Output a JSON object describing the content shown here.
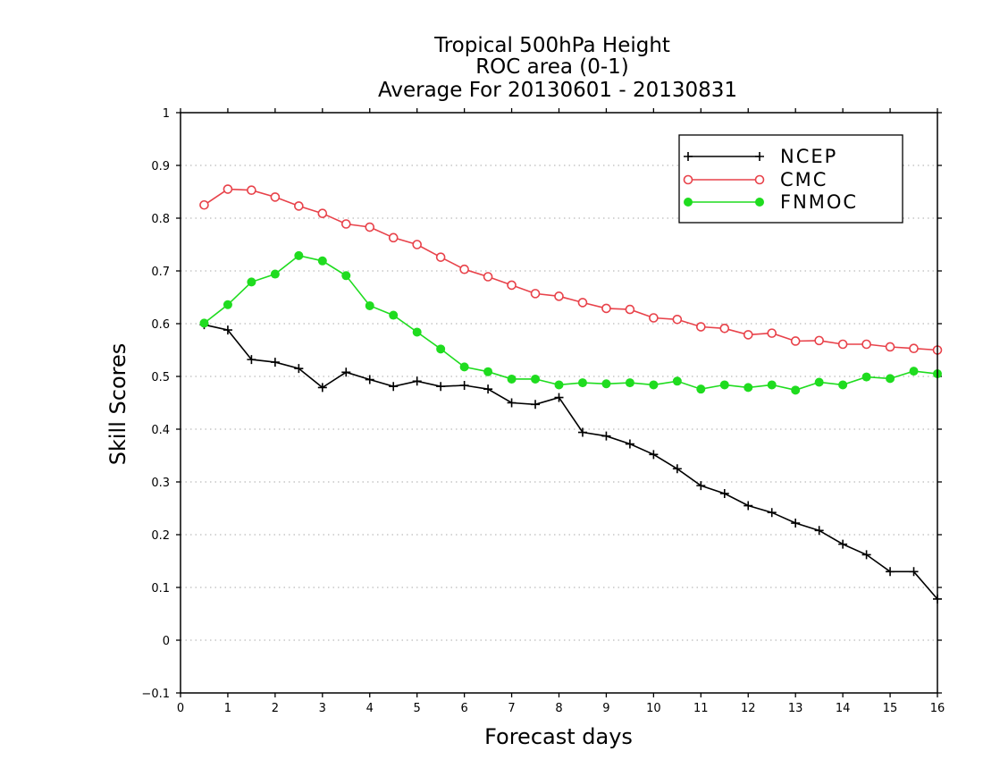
{
  "chart_data": {
    "type": "line",
    "title_lines": [
      "Tropical 500hPa Height",
      "ROC area (0-1)",
      "Average For 20130601 - 20130831"
    ],
    "xlabel": "Forecast days",
    "ylabel": "Skill Scores",
    "xlim": [
      0,
      16
    ],
    "ylim": [
      -0.1,
      1
    ],
    "xticks": [
      0,
      1,
      2,
      3,
      4,
      5,
      6,
      7,
      8,
      9,
      10,
      11,
      12,
      13,
      14,
      15,
      16
    ],
    "yticks": [
      -0.1,
      0,
      0.1,
      0.2,
      0.3,
      0.4,
      0.5,
      0.6,
      0.7,
      0.8,
      0.9,
      1
    ],
    "x_tick_labels": [
      "0",
      "1",
      "2",
      "3",
      "4",
      "5",
      "6",
      "7",
      "8",
      "9",
      "10",
      "11",
      "12",
      "13",
      "14",
      "15",
      "16"
    ],
    "y_tick_labels": [
      "−0.1",
      "0",
      "0.1",
      "0.2",
      "0.3",
      "0.4",
      "0.5",
      "0.6",
      "0.7",
      "0.8",
      "0.9",
      "1"
    ],
    "grid": true,
    "legend_position": "top-right",
    "x": [
      0.5,
      1,
      1.5,
      2,
      2.5,
      3,
      3.5,
      4,
      4.5,
      5,
      5.5,
      6,
      6.5,
      7,
      7.5,
      8,
      8.5,
      9,
      9.5,
      10,
      10.5,
      11,
      11.5,
      12,
      12.5,
      13,
      13.5,
      14,
      14.5,
      15,
      15.5,
      16
    ],
    "series": [
      {
        "name": "NCEP",
        "color": "#000000",
        "marker": "plus",
        "values": [
          0.598,
          0.588,
          0.532,
          0.527,
          0.515,
          0.479,
          0.508,
          0.494,
          0.481,
          0.491,
          0.481,
          0.483,
          0.476,
          0.45,
          0.447,
          0.46,
          0.394,
          0.387,
          0.372,
          0.352,
          0.325,
          0.293,
          0.278,
          0.255,
          0.242,
          0.222,
          0.208,
          0.182,
          0.162,
          0.13,
          0.13,
          0.078
        ]
      },
      {
        "name": "CMC",
        "color": "#e8424a",
        "marker": "open-circle",
        "values": [
          0.825,
          0.855,
          0.853,
          0.84,
          0.823,
          0.809,
          0.789,
          0.783,
          0.763,
          0.75,
          0.726,
          0.703,
          0.689,
          0.673,
          0.657,
          0.652,
          0.64,
          0.629,
          0.627,
          0.611,
          0.608,
          0.594,
          0.591,
          0.579,
          0.582,
          0.567,
          0.568,
          0.561,
          0.561,
          0.556,
          0.553,
          0.55
        ]
      },
      {
        "name": "FNMOC",
        "color": "#1fdc1f",
        "marker": "filled-circle",
        "values": [
          0.601,
          0.636,
          0.679,
          0.694,
          0.729,
          0.719,
          0.691,
          0.634,
          0.616,
          0.584,
          0.552,
          0.518,
          0.509,
          0.495,
          0.495,
          0.484,
          0.488,
          0.486,
          0.488,
          0.484,
          0.491,
          0.476,
          0.484,
          0.479,
          0.484,
          0.474,
          0.489,
          0.484,
          0.499,
          0.496,
          0.51,
          0.505
        ]
      }
    ]
  }
}
